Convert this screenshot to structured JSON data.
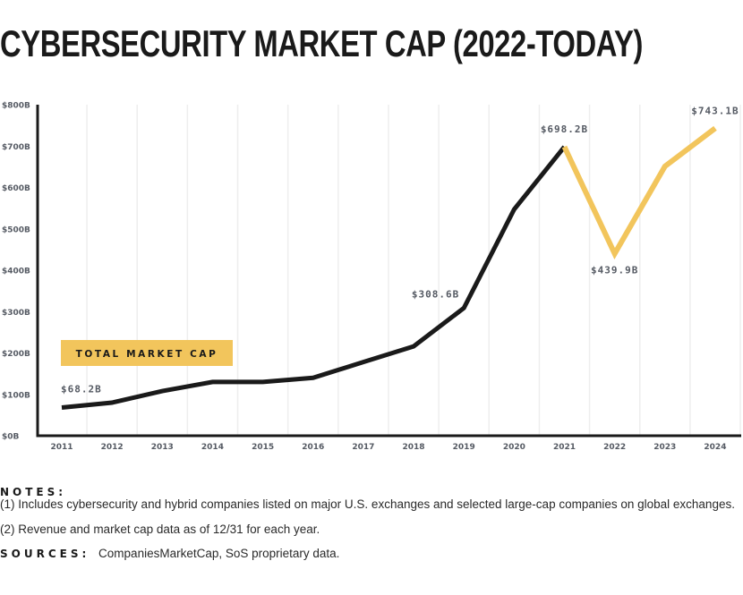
{
  "title": "CYBERSECURITY MARKET CAP (2022-TODAY)",
  "chart_data": {
    "type": "line",
    "title": "CYBERSECURITY MARKET CAP (2022-TODAY)",
    "xlabel": "",
    "ylabel": "",
    "x": [
      "2011",
      "2012",
      "2013",
      "2014",
      "2015",
      "2016",
      "2017",
      "2018",
      "2019",
      "2020",
      "2021",
      "2022",
      "2023",
      "2024"
    ],
    "series": [
      {
        "name": "TOTAL MARKET CAP",
        "values": [
          68.2,
          80,
          108,
          130,
          130,
          140,
          178,
          216,
          308.6,
          547,
          698.2,
          439.9,
          651,
          743.1
        ],
        "color": "#1a1a1a",
        "highlight_from_index": 10,
        "highlight_color": "#f2c55c"
      }
    ],
    "ylim": [
      0,
      800
    ],
    "yticks": [
      0,
      100,
      200,
      300,
      400,
      500,
      600,
      700,
      800
    ],
    "ytick_labels": [
      "$0B",
      "$100B",
      "$200B",
      "$300B",
      "$400B",
      "$500B",
      "$600B",
      "$700B",
      "$800B"
    ],
    "grid": "vertical",
    "legend": {
      "label": "TOTAL MARKET CAP",
      "position": "left",
      "color": "#f2c55c"
    },
    "annotations": [
      {
        "x": "2011",
        "value": 68.2,
        "text": "$68.2B",
        "placement": "above"
      },
      {
        "x": "2019",
        "value": 308.6,
        "text": "$308.6B",
        "placement": "above-left"
      },
      {
        "x": "2021",
        "value": 698.2,
        "text": "$698.2B",
        "placement": "above"
      },
      {
        "x": "2022",
        "value": 439.9,
        "text": "$439.9B",
        "placement": "below"
      },
      {
        "x": "2024",
        "value": 743.1,
        "text": "$743.1B",
        "placement": "above"
      }
    ]
  },
  "notes": {
    "heading": "NOTES:",
    "items": [
      "(1) Includes cybersecurity and hybrid companies listed on major U.S. exchanges and selected large-cap companies on global exchanges.",
      "(2) Revenue and market cap data as of 12/31 for each year."
    ]
  },
  "sources": {
    "heading": "SOURCES:",
    "text": "CompaniesMarketCap, SoS proprietary data."
  }
}
